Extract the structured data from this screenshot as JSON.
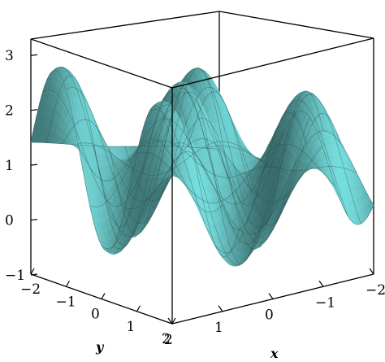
{
  "chart_data": {
    "type": "surface3d",
    "title": "",
    "xlabel": "x",
    "ylabel": "y",
    "zlabel": "",
    "x_range": [
      -2,
      2
    ],
    "y_range": [
      -2,
      2
    ],
    "z_range": [
      -1,
      3.3
    ],
    "x_ticks": [
      2,
      1,
      0,
      -1,
      -2
    ],
    "x_tick_labels": [
      "2",
      "1",
      "0",
      "−1",
      "−2"
    ],
    "y_ticks": [
      -2,
      -1,
      0,
      1,
      2
    ],
    "y_tick_labels": [
      "−2",
      "−1",
      "0",
      "1",
      "2"
    ],
    "z_ticks": [
      3,
      2,
      1,
      0,
      -1
    ],
    "z_tick_labels": [
      "3",
      "2",
      "1",
      "0",
      "−1"
    ],
    "surface_color": "#6fd0d0",
    "mesh_color": "#2d4a4a",
    "grid_lines_per_axis": 13,
    "box": true
  }
}
